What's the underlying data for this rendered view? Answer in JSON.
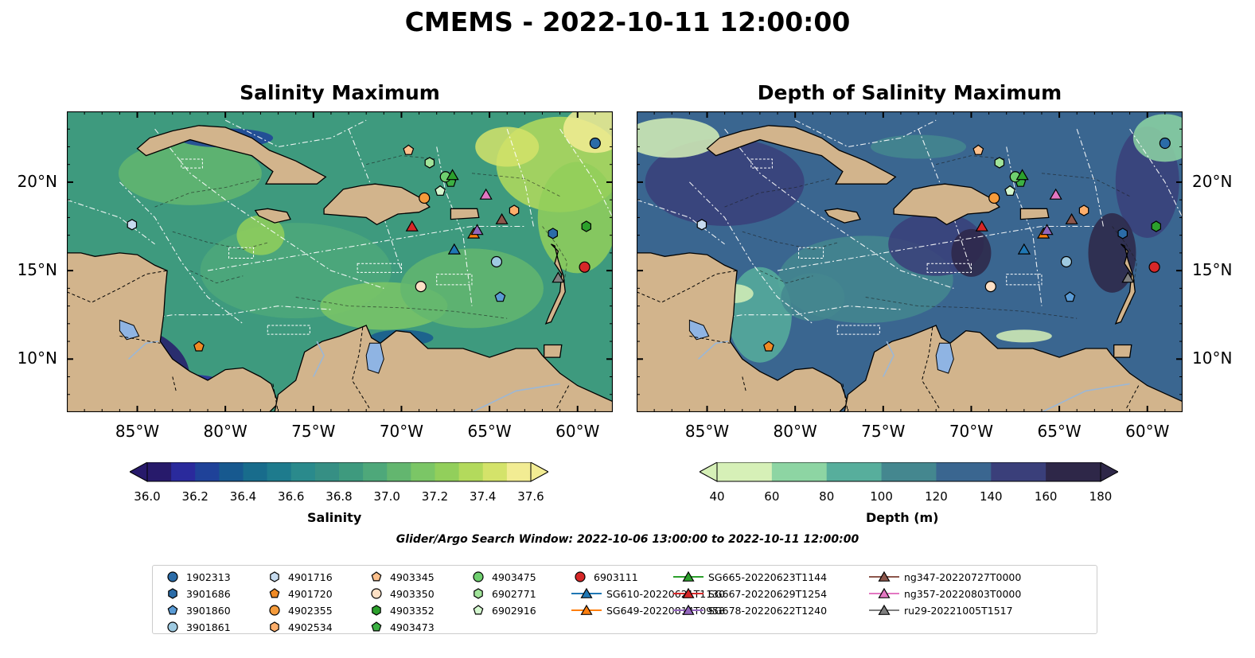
{
  "title": "CMEMS - 2022-10-11 12:00:00",
  "panels": [
    {
      "title": "Salinity Maximum"
    },
    {
      "title": "Depth of Salinity Maximum"
    }
  ],
  "axes": {
    "x_ticks": [
      "85°W",
      "80°W",
      "75°W",
      "70°W",
      "65°W",
      "60°W"
    ],
    "y_ticks": [
      "20°N",
      "15°N",
      "10°N"
    ]
  },
  "colorbars": {
    "salinity": {
      "label": "Salinity",
      "ticks": [
        "36.0",
        "36.2",
        "36.4",
        "36.6",
        "36.8",
        "37.0",
        "37.2",
        "37.4",
        "37.6"
      ],
      "colors": [
        "#271a6b",
        "#2a2a9c",
        "#1f4299",
        "#17598f",
        "#186c8c",
        "#1e7b8d",
        "#2a8a8c",
        "#368f84",
        "#3e9a7e",
        "#4ea87a",
        "#63b66f",
        "#7bc666",
        "#92cf5b",
        "#b3da5c",
        "#d4e36a",
        "#f2ec93"
      ]
    },
    "depth": {
      "label": "Depth (m)",
      "ticks": [
        "40",
        "60",
        "80",
        "100",
        "120",
        "140",
        "160",
        "180"
      ],
      "colors": [
        "#d6f0b7",
        "#8dd5a3",
        "#57ae9c",
        "#44878f",
        "#3a6690",
        "#3a3f7a",
        "#2e2748"
      ]
    }
  },
  "search_window": "Glider/Argo Search Window: 2022-10-06 13:00:00 to 2022-10-11 12:00:00",
  "map_extent": {
    "lon": [
      -89,
      -58
    ],
    "lat": [
      7,
      24
    ]
  },
  "markers": [
    {
      "label": "1902313",
      "shape": "circle",
      "color": "#2b6ca8",
      "lon": -59,
      "lat": 22.2
    },
    {
      "label": "3901686",
      "shape": "hexagon",
      "color": "#2b6ca8",
      "lon": -61.4,
      "lat": 17.1
    },
    {
      "label": "3901860",
      "shape": "pentagon",
      "color": "#5a9bd5",
      "lon": -64.4,
      "lat": 13.5
    },
    {
      "label": "3901861",
      "shape": "circle",
      "color": "#9ecae1",
      "lon": -64.6,
      "lat": 15.5
    },
    {
      "label": "4901716",
      "shape": "hexagon",
      "color": "#c6dbef",
      "lon": -85.3,
      "lat": 17.6
    },
    {
      "label": "4901720",
      "shape": "pentagon",
      "color": "#f08a24",
      "lon": -81.5,
      "lat": 10.7
    },
    {
      "label": "4902355",
      "shape": "circle",
      "color": "#f59b3b",
      "lon": -68.7,
      "lat": 19.1
    },
    {
      "label": "4902534",
      "shape": "hexagon",
      "color": "#fdae6b",
      "lon": -63.6,
      "lat": 18.4
    },
    {
      "label": "4903345",
      "shape": "pentagon",
      "color": "#fdc08c",
      "lon": -69.6,
      "lat": 21.8
    },
    {
      "label": "4903350",
      "shape": "circle",
      "color": "#fde0c5",
      "lon": -68.9,
      "lat": 14.1
    },
    {
      "label": "4903352",
      "shape": "hexagon",
      "color": "#2ca02c",
      "lon": -59.5,
      "lat": 17.5
    },
    {
      "label": "4903473",
      "shape": "pentagon",
      "color": "#3cb043",
      "lon": -67.2,
      "lat": 20
    },
    {
      "label": "4903475",
      "shape": "circle",
      "color": "#6fcf6f",
      "lon": -67.5,
      "lat": 20.3
    },
    {
      "label": "6902771",
      "shape": "hexagon",
      "color": "#a1e49a",
      "lon": -68.4,
      "lat": 21.1
    },
    {
      "label": "6902916",
      "shape": "pentagon",
      "color": "#d4f7cf",
      "lon": -67.8,
      "lat": 19.5
    },
    {
      "label": "6903111",
      "shape": "circle",
      "color": "#d62728",
      "lon": -59.6,
      "lat": 15.2
    },
    {
      "label": "SG610-20220621T1130",
      "shape": "triangle",
      "color": "#1f77b4",
      "lon": -67,
      "lat": 16.2
    },
    {
      "label": "SG649-20220814T0958",
      "shape": "triangle",
      "color": "#ff7f0e",
      "lon": -65.9,
      "lat": 17.1
    },
    {
      "label": "SG665-20220623T1144",
      "shape": "triangle",
      "color": "#2ca02c",
      "lon": -67.1,
      "lat": 20.4
    },
    {
      "label": "SG667-20220629T1254",
      "shape": "triangle",
      "color": "#d62728",
      "lon": -69.4,
      "lat": 17.5
    },
    {
      "label": "SG678-20220622T1240",
      "shape": "triangle",
      "color": "#9467bd",
      "lon": -65.7,
      "lat": 17.3
    },
    {
      "label": "ng347-20220727T0000",
      "shape": "triangle",
      "color": "#8c564b",
      "lon": -64.3,
      "lat": 17.9
    },
    {
      "label": "ng357-20220803T0000",
      "shape": "triangle",
      "color": "#e377c2",
      "lon": -65.2,
      "lat": 19.3
    },
    {
      "label": "ru29-20221005T1517",
      "shape": "triangle",
      "color": "#7f7f7f",
      "lon": -61.1,
      "lat": 14.6
    }
  ]
}
